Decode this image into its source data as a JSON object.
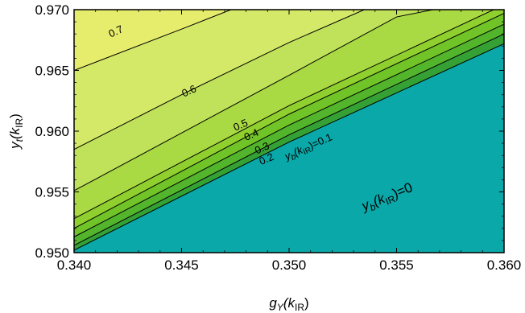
{
  "chart_data": {
    "type": "contour",
    "xlabel": {
      "main": "g",
      "sub": "Y",
      "arg": "(k",
      "arg_sub": "IR",
      "close": ")"
    },
    "ylabel": {
      "main": "y",
      "sub": "t",
      "arg": "(k",
      "arg_sub": "IR",
      "close": ")"
    },
    "xlim": [
      0.34,
      0.36
    ],
    "ylim": [
      0.95,
      0.97
    ],
    "xticks": [
      0.34,
      0.345,
      0.35,
      0.355,
      0.36
    ],
    "xtick_labels": [
      "0.340",
      "0.345",
      "0.350",
      "0.355",
      "0.360"
    ],
    "yticks": [
      0.95,
      0.955,
      0.96,
      0.965,
      0.97
    ],
    "ytick_labels": [
      "0.950",
      "0.955",
      "0.960",
      "0.965",
      "0.970"
    ],
    "colors": {
      "zero_region": "#0aa8a8",
      "band_0_0.1": "#35a135",
      "band_0.1_0.2": "#52b52c",
      "band_0.2_0.3": "#70c428",
      "band_0.3_0.4": "#8fd02e",
      "band_0.4_0.5": "#a9d943",
      "band_0.5_0.6": "#bfe25a",
      "band_0.6_0.7": "#d5e968",
      "band_0.7_plus": "#e6ec6c",
      "line": "#000000"
    },
    "contours": [
      {
        "level": "0",
        "label": "",
        "points": [
          [
            0.34,
            0.9502
          ],
          [
            0.35,
            0.9591
          ],
          [
            0.36,
            0.9672
          ]
        ]
      },
      {
        "level": "0.1",
        "label": "",
        "points": [
          [
            0.34,
            0.9506
          ],
          [
            0.35,
            0.9597
          ],
          [
            0.36,
            0.968
          ]
        ]
      },
      {
        "level": "0.2",
        "label": "0.2",
        "points": [
          [
            0.34,
            0.9513
          ],
          [
            0.35,
            0.9605
          ],
          [
            0.36,
            0.9688
          ]
        ]
      },
      {
        "level": "0.3",
        "label": "0.3",
        "points": [
          [
            0.34,
            0.952
          ],
          [
            0.35,
            0.9614
          ],
          [
            0.36,
            0.9697
          ]
        ]
      },
      {
        "level": "0.4",
        "label": "0.4",
        "points": [
          [
            0.34,
            0.9528
          ],
          [
            0.35,
            0.9621
          ],
          [
            0.36,
            0.9704
          ]
        ]
      },
      {
        "level": "0.5",
        "label": "0.5",
        "points": [
          [
            0.34,
            0.9551
          ],
          [
            0.35,
            0.9646
          ],
          [
            0.355,
            0.9694
          ],
          [
            0.3567,
            0.97
          ]
        ]
      },
      {
        "level": "0.6",
        "label": "0.6",
        "points": [
          [
            0.34,
            0.9585
          ],
          [
            0.345,
            0.963
          ],
          [
            0.35,
            0.9673
          ],
          [
            0.3535,
            0.97
          ]
        ]
      },
      {
        "level": "0.7",
        "label": "0.7",
        "points": [
          [
            0.34,
            0.965
          ],
          [
            0.345,
            0.9684
          ],
          [
            0.3473,
            0.97
          ]
        ]
      }
    ],
    "contour_label_extra": {
      "main": "y",
      "sub": "b",
      "arg": "(k",
      "arg_sub": "IR",
      "close": ")=0.1"
    },
    "region_label": {
      "main": "y",
      "sub": "b",
      "arg": "(k",
      "arg_sub": "IR",
      "close": ")=0"
    }
  }
}
